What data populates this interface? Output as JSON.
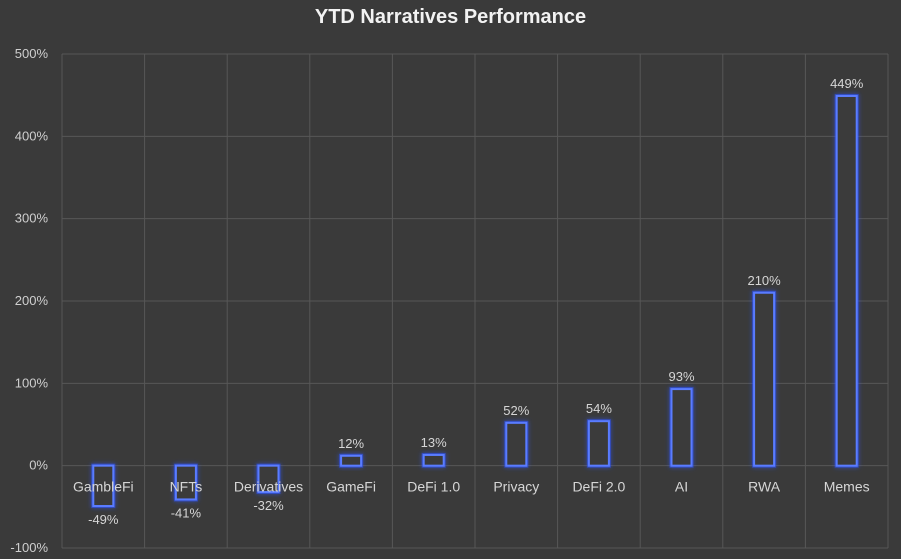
{
  "chart_data": {
    "type": "bar",
    "title": "YTD Narratives Performance",
    "categories": [
      "GambleFi",
      "NFTs",
      "Derivatives",
      "GameFi",
      "DeFi 1.0",
      "Privacy",
      "DeFi 2.0",
      "AI",
      "RWA",
      "Memes"
    ],
    "values": [
      -49,
      -41,
      -32,
      12,
      13,
      52,
      54,
      93,
      210,
      449
    ],
    "data_labels": [
      "-49%",
      "-41%",
      "-32%",
      "12%",
      "13%",
      "52%",
      "54%",
      "93%",
      "210%",
      "449%"
    ],
    "y_ticks": [
      500,
      400,
      300,
      200,
      100,
      0,
      -100
    ],
    "y_tick_labels": [
      "500%",
      "400%",
      "300%",
      "200%",
      "100%",
      "0%",
      "-100%"
    ],
    "ylim": [
      -100,
      500
    ],
    "xlabel": "",
    "ylabel": "",
    "grid": true,
    "legend": "none",
    "colors": {
      "background": "#3a3a3a",
      "grid": "#575757",
      "bar_fill": "#3b3b3b",
      "bar_stroke": "#5a7cff",
      "bar_glow": "#2f55ff",
      "text": "#d6d6d6",
      "title": "#f2f2f2"
    }
  }
}
